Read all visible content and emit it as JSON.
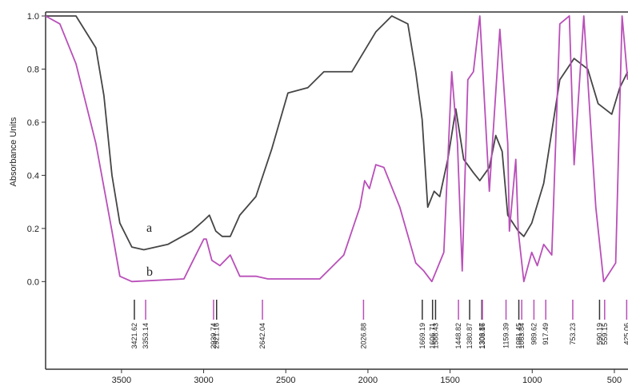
{
  "chart_data": {
    "type": "line",
    "ylabel": "Absorbance Units",
    "xlim": [
      3962,
      417
    ],
    "ylim": [
      -0.33,
      1.015
    ],
    "xticks": [
      3500,
      3000,
      2500,
      2000,
      1500,
      1000,
      500
    ],
    "yticks": [
      {
        "value": 0,
        "label": "0.0"
      },
      0.2,
      0.4,
      0.6,
      0.8,
      {
        "value": 1,
        "label": "1.0"
      }
    ],
    "series": [
      {
        "name": "a",
        "color": "#454545",
        "x": [
          3962,
          3777,
          3656,
          3607,
          3558,
          3510,
          3437,
          3364,
          3218,
          3072,
          2999,
          2965,
          2926,
          2887,
          2838,
          2780,
          2682,
          2585,
          2487,
          2366,
          2268,
          2098,
          1952,
          1855,
          1757,
          1709,
          1670,
          1636,
          1597,
          1563,
          1514,
          1465,
          1417,
          1358,
          1319,
          1261,
          1222,
          1183,
          1149,
          1085,
          1051,
          1003,
          930,
          832,
          745,
          662,
          599,
          516,
          467,
          419
        ],
        "values": [
          1.0,
          1.0,
          0.88,
          0.7,
          0.4,
          0.22,
          0.13,
          0.12,
          0.14,
          0.19,
          0.23,
          0.25,
          0.19,
          0.17,
          0.17,
          0.25,
          0.32,
          0.5,
          0.71,
          0.73,
          0.79,
          0.79,
          0.94,
          1.0,
          0.97,
          0.79,
          0.61,
          0.28,
          0.34,
          0.32,
          0.46,
          0.65,
          0.46,
          0.41,
          0.38,
          0.43,
          0.55,
          0.49,
          0.25,
          0.19,
          0.17,
          0.22,
          0.37,
          0.76,
          0.84,
          0.8,
          0.67,
          0.63,
          0.73,
          0.79
        ]
      },
      {
        "name": "b",
        "color": "#b94fb9",
        "x": [
          3962,
          3875,
          3777,
          3656,
          3558,
          3510,
          3437,
          3120,
          3072,
          2999,
          2984,
          2950,
          2901,
          2838,
          2780,
          2682,
          2609,
          2293,
          2147,
          2049,
          2020,
          1991,
          1952,
          1903,
          1806,
          1709,
          1660,
          1611,
          1538,
          1490,
          1455,
          1426,
          1392,
          1358,
          1319,
          1261,
          1197,
          1149,
          1139,
          1100,
          1085,
          1051,
          1003,
          969,
          930,
          881,
          832,
          774,
          745,
          686,
          613,
          565,
          492,
          453,
          419
        ],
        "values": [
          1.0,
          0.97,
          0.82,
          0.52,
          0.19,
          0.02,
          0.0,
          0.01,
          0.07,
          0.16,
          0.16,
          0.08,
          0.06,
          0.1,
          0.02,
          0.02,
          0.01,
          0.01,
          0.1,
          0.28,
          0.38,
          0.35,
          0.44,
          0.43,
          0.28,
          0.07,
          0.04,
          0.0,
          0.11,
          0.79,
          0.52,
          0.04,
          0.76,
          0.79,
          1.0,
          0.34,
          0.95,
          0.52,
          0.19,
          0.46,
          0.19,
          0.0,
          0.11,
          0.06,
          0.14,
          0.1,
          0.97,
          1.0,
          0.44,
          1.0,
          0.28,
          0.0,
          0.07,
          1.0,
          0.76
        ]
      }
    ],
    "peak_labels": [
      3421.62,
      3353.14,
      2939.74,
      2921.16,
      2642.04,
      2026.88,
      1669.19,
      1606.71,
      1588.43,
      1448.82,
      1380.87,
      1306.87,
      1303.16,
      1159.39,
      1081.45,
      1063.84,
      989.62,
      917.49,
      753.23,
      590.19,
      559.15,
      425.06
    ],
    "peak_colors": [
      "#333333",
      "#b94fb9",
      "#b94fb9",
      "#333333",
      "#b94fb9",
      "#b94fb9",
      "#333333",
      "#333333",
      "#333333",
      "#b94fb9",
      "#333333",
      "#333333",
      "#b94fb9",
      "#b94fb9",
      "#333333",
      "#b94fb9",
      "#b94fb9",
      "#b94fb9",
      "#b94fb9",
      "#333333",
      "#b94fb9",
      "#b94fb9"
    ]
  }
}
